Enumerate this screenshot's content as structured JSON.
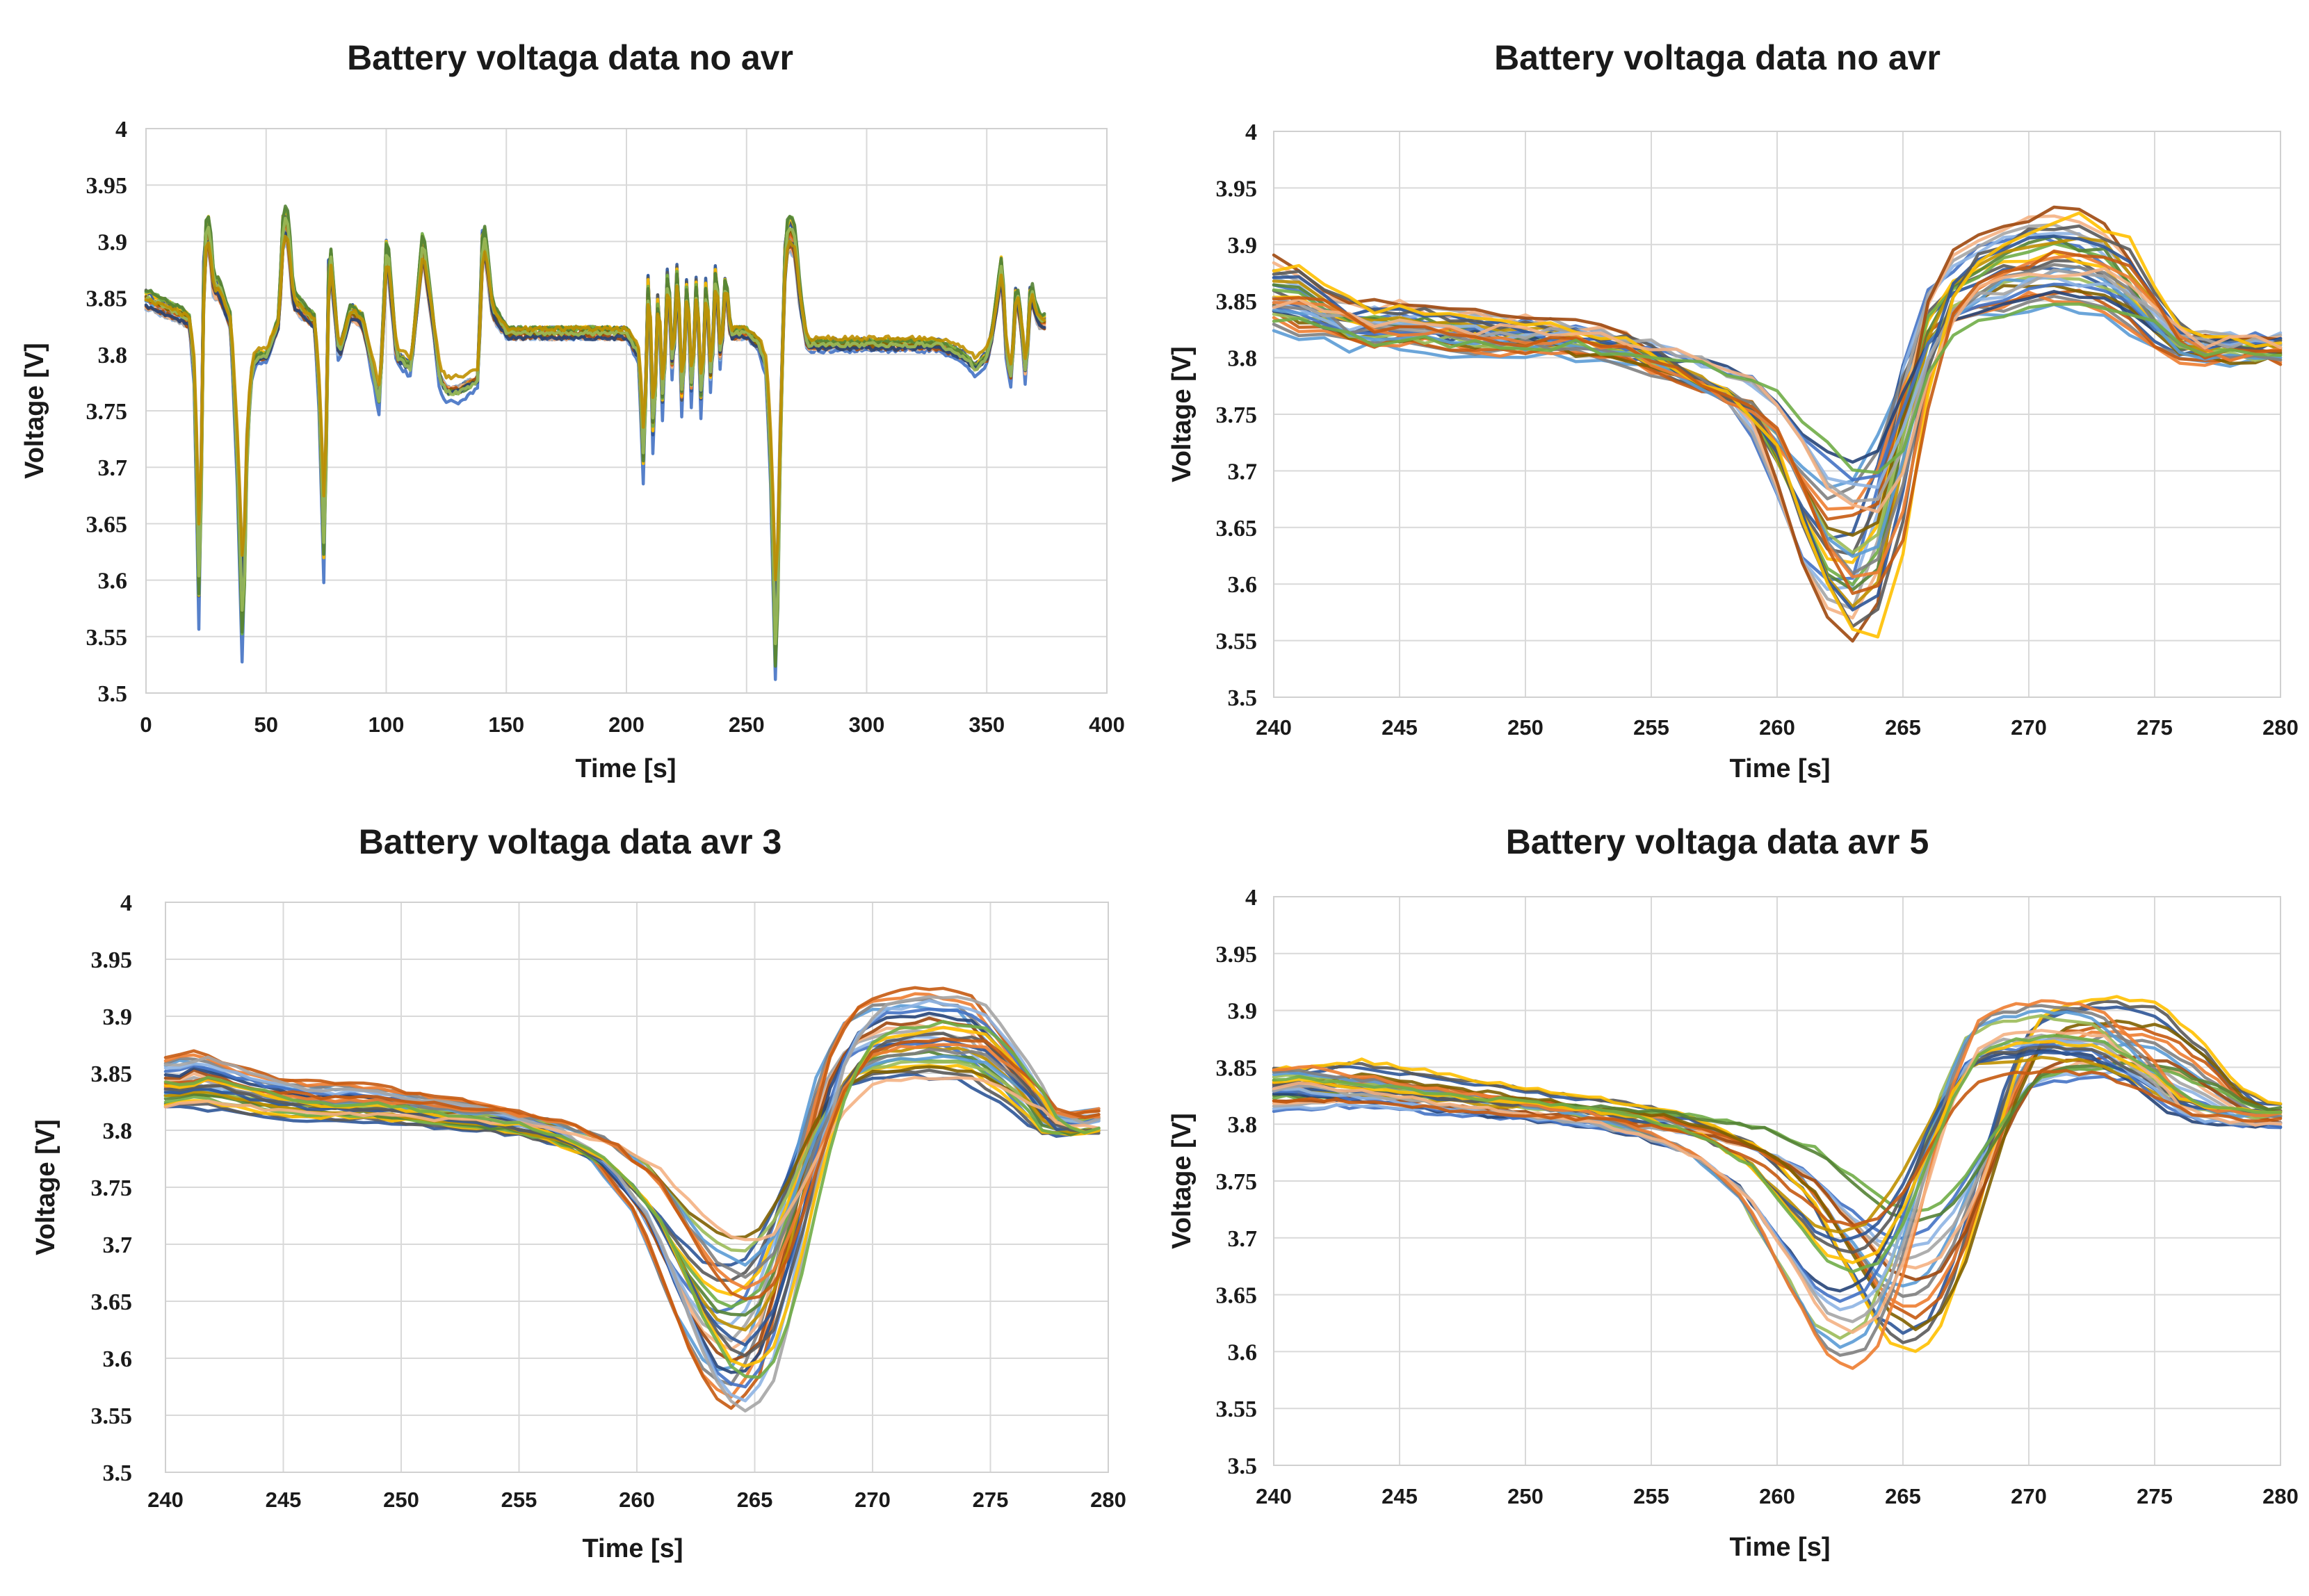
{
  "colors": [
    "#4472c4",
    "#5b9bd5",
    "#2e5597",
    "#8eb4e3",
    "#7f7f7f",
    "#5a5a5a",
    "#a5a5a5",
    "#ed7d31",
    "#ffc000",
    "#f4b183",
    "#c55a11",
    "#70ad47",
    "#9e480e",
    "#806000",
    "#548235",
    "#264478",
    "#9bbb59",
    "#bf9000"
  ],
  "chart_data": [
    {
      "type": "line",
      "title": "Battery voltaga data no avr",
      "xlabel": "Time [s]",
      "ylabel": "Voltage [V]",
      "xlim": [
        0,
        400
      ],
      "ylim": [
        3.5,
        4
      ],
      "xticks": [
        "0",
        "50",
        "100",
        "150",
        "200",
        "250",
        "300",
        "350",
        "400"
      ],
      "yticks": [
        "3.5",
        "3.55",
        "3.6",
        "3.65",
        "3.7",
        "3.75",
        "3.8",
        "3.85",
        "3.9",
        "3.95",
        "4"
      ],
      "series_count": 18,
      "base": {
        "x": [
          0,
          5,
          10,
          15,
          18,
          20,
          22,
          24,
          26,
          28,
          30,
          35,
          38,
          40,
          42,
          44,
          46,
          50,
          55,
          57,
          59,
          61,
          65,
          70,
          72,
          74,
          76,
          78,
          80,
          85,
          90,
          95,
          97,
          100,
          102,
          104,
          110,
          115,
          118,
          122,
          125,
          130,
          138,
          140,
          142,
          144,
          150,
          160,
          180,
          200,
          205,
          207,
          209,
          211,
          213,
          215,
          217,
          219,
          221,
          223,
          225,
          227,
          229,
          231,
          233,
          235,
          237,
          239,
          241,
          243,
          245,
          250,
          255,
          258,
          260,
          262,
          264,
          266,
          268,
          270,
          272,
          275,
          280,
          300,
          320,
          330,
          340,
          345,
          350,
          352,
          354,
          356,
          358,
          360,
          362,
          364,
          366,
          368,
          370,
          372,
          374
        ],
        "y": [
          3.85,
          3.845,
          3.84,
          3.835,
          3.83,
          3.78,
          3.58,
          3.9,
          3.91,
          3.86,
          3.86,
          3.83,
          3.7,
          3.56,
          3.74,
          3.79,
          3.8,
          3.8,
          3.83,
          3.92,
          3.91,
          3.85,
          3.84,
          3.83,
          3.76,
          3.62,
          3.9,
          3.85,
          3.8,
          3.84,
          3.83,
          3.78,
          3.76,
          3.9,
          3.85,
          3.8,
          3.79,
          3.9,
          3.85,
          3.78,
          3.77,
          3.77,
          3.78,
          3.91,
          3.88,
          3.84,
          3.82,
          3.82,
          3.82,
          3.82,
          3.8,
          3.7,
          3.88,
          3.72,
          3.86,
          3.75,
          3.88,
          3.78,
          3.88,
          3.75,
          3.87,
          3.76,
          3.87,
          3.75,
          3.87,
          3.77,
          3.88,
          3.79,
          3.87,
          3.82,
          3.82,
          3.82,
          3.81,
          3.79,
          3.7,
          3.53,
          3.75,
          3.9,
          3.91,
          3.9,
          3.85,
          3.81,
          3.81,
          3.81,
          3.81,
          3.81,
          3.8,
          3.79,
          3.8,
          3.82,
          3.85,
          3.88,
          3.8,
          3.78,
          3.86,
          3.83,
          3.78,
          3.86,
          3.84,
          3.83,
          3.83
        ]
      }
    },
    {
      "type": "line",
      "title": "Battery voltaga data no avr",
      "xlabel": "Time [s]",
      "ylabel": "Voltage [V]",
      "xlim": [
        240,
        280
      ],
      "ylim": [
        3.5,
        4
      ],
      "xticks": [
        "240",
        "245",
        "250",
        "255",
        "260",
        "265",
        "270",
        "275",
        "280"
      ],
      "yticks": [
        "3.5",
        "3.55",
        "3.6",
        "3.65",
        "3.7",
        "3.75",
        "3.8",
        "3.85",
        "3.9",
        "3.95",
        "4"
      ],
      "series_count": 30,
      "base": {
        "x": [
          240,
          241,
          242,
          243,
          244,
          246,
          248,
          250,
          252,
          254,
          255,
          256,
          257,
          258,
          259,
          260,
          261,
          262,
          263,
          264,
          265,
          266,
          267,
          268,
          270,
          272,
          274,
          275,
          276,
          277,
          278,
          280
        ],
        "y": [
          3.85,
          3.86,
          3.85,
          3.84,
          3.83,
          3.83,
          3.825,
          3.82,
          3.82,
          3.815,
          3.81,
          3.8,
          3.79,
          3.78,
          3.77,
          3.76,
          3.72,
          3.67,
          3.63,
          3.62,
          3.64,
          3.75,
          3.83,
          3.86,
          3.88,
          3.89,
          3.88,
          3.86,
          3.83,
          3.81,
          3.81,
          3.81
        ]
      }
    },
    {
      "type": "line",
      "title": "Battery voltaga data avr 3",
      "xlabel": "Time [s]",
      "ylabel": "Voltage [V]",
      "xlim": [
        240,
        280
      ],
      "ylim": [
        3.5,
        4
      ],
      "xticks": [
        "240",
        "245",
        "250",
        "255",
        "260",
        "265",
        "270",
        "275",
        "280"
      ],
      "yticks": [
        "3.5",
        "3.55",
        "3.6",
        "3.65",
        "3.7",
        "3.75",
        "3.8",
        "3.85",
        "3.9",
        "3.95",
        "4"
      ],
      "series_count": 30,
      "base": {
        "x": [
          240,
          241,
          242,
          243,
          244,
          246,
          248,
          250,
          252,
          254,
          256,
          258,
          260,
          261,
          262,
          263,
          264,
          265,
          266,
          267,
          268,
          269,
          270,
          272,
          274,
          276,
          277,
          278,
          280
        ],
        "y": [
          3.84,
          3.845,
          3.84,
          3.835,
          3.83,
          3.825,
          3.825,
          3.82,
          3.815,
          3.81,
          3.8,
          3.78,
          3.74,
          3.7,
          3.66,
          3.63,
          3.62,
          3.64,
          3.7,
          3.78,
          3.84,
          3.87,
          3.88,
          3.885,
          3.88,
          3.84,
          3.81,
          3.805,
          3.81
        ]
      }
    },
    {
      "type": "line",
      "title": "Battery voltaga data avr 5",
      "xlabel": "Time [s]",
      "ylabel": "Voltage [V]",
      "xlim": [
        240,
        280
      ],
      "ylim": [
        3.5,
        4
      ],
      "xticks": [
        "240",
        "245",
        "250",
        "255",
        "260",
        "265",
        "270",
        "275",
        "280"
      ],
      "yticks": [
        "3.5",
        "3.55",
        "3.6",
        "3.65",
        "3.7",
        "3.75",
        "3.8",
        "3.85",
        "3.9",
        "3.95",
        "4"
      ],
      "series_count": 30,
      "base": {
        "x": [
          240,
          242,
          244,
          246,
          248,
          250,
          252,
          254,
          256,
          258,
          260,
          261,
          262,
          263,
          264,
          265,
          266,
          267,
          268,
          269,
          270,
          272,
          274,
          276,
          277,
          278,
          280
        ],
        "y": [
          3.83,
          3.835,
          3.83,
          3.825,
          3.82,
          3.815,
          3.81,
          3.805,
          3.795,
          3.78,
          3.75,
          3.72,
          3.69,
          3.66,
          3.65,
          3.66,
          3.7,
          3.76,
          3.82,
          3.86,
          3.87,
          3.875,
          3.87,
          3.84,
          3.82,
          3.81,
          3.805
        ]
      }
    }
  ]
}
